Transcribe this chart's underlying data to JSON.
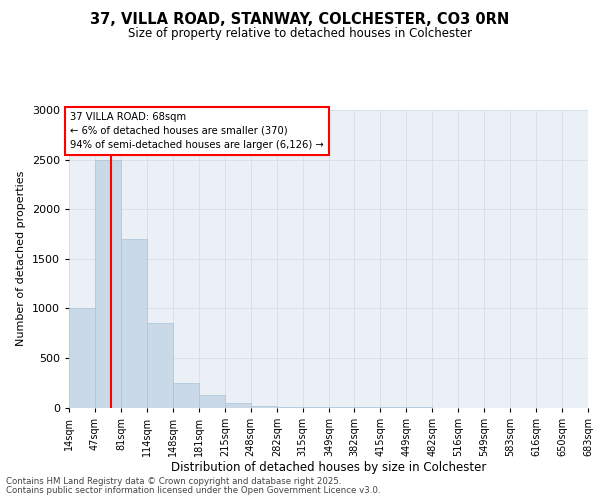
{
  "title": "37, VILLA ROAD, STANWAY, COLCHESTER, CO3 0RN",
  "subtitle": "Size of property relative to detached houses in Colchester",
  "xlabel": "Distribution of detached houses by size in Colchester",
  "ylabel": "Number of detached properties",
  "footer_line1": "Contains HM Land Registry data © Crown copyright and database right 2025.",
  "footer_line2": "Contains public sector information licensed under the Open Government Licence v3.0.",
  "bar_color": "#c9d9e8",
  "bar_edge_color": "#a8c4d8",
  "red_line_x": 68,
  "annotation_title": "37 VILLA ROAD: 68sqm",
  "annotation_line2": "← 6% of detached houses are smaller (370)",
  "annotation_line3": "94% of semi-detached houses are larger (6,126) →",
  "ylim": [
    0,
    3000
  ],
  "bin_edges": [
    14,
    47,
    81,
    114,
    148,
    181,
    215,
    248,
    282,
    315,
    349,
    382,
    415,
    449,
    482,
    516,
    549,
    583,
    616,
    650,
    683
  ],
  "bin_values": [
    1000,
    2500,
    1700,
    850,
    250,
    130,
    50,
    20,
    10,
    5,
    3,
    2,
    1,
    1,
    0,
    0,
    0,
    0,
    0,
    0
  ],
  "tick_labels": [
    "14sqm",
    "47sqm",
    "81sqm",
    "114sqm",
    "148sqm",
    "181sqm",
    "215sqm",
    "248sqm",
    "282sqm",
    "315sqm",
    "349sqm",
    "382sqm",
    "415sqm",
    "449sqm",
    "482sqm",
    "516sqm",
    "549sqm",
    "583sqm",
    "616sqm",
    "650sqm",
    "683sqm"
  ],
  "grid_color": "#d8e0e8",
  "background_color": "#eaf0f6"
}
